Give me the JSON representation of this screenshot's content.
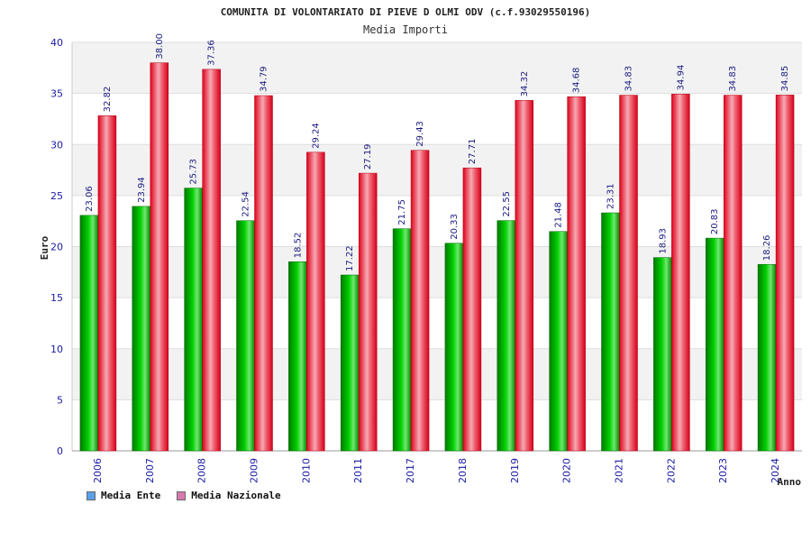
{
  "chart_data": {
    "type": "bar",
    "title": "COMUNITA DI VOLONTARIATO DI PIEVE D OLMI ODV (c.f.93029550196)",
    "subtitle": "Media Importi",
    "xlabel": "Anno",
    "ylabel": "Euro",
    "ylim": [
      0,
      40
    ],
    "yticks": [
      0,
      5,
      10,
      15,
      20,
      25,
      30,
      35,
      40
    ],
    "grid": true,
    "legend_position": "bottom-left",
    "categories": [
      "2006",
      "2007",
      "2008",
      "2009",
      "2010",
      "2011",
      "2017",
      "2018",
      "2019",
      "2020",
      "2021",
      "2022",
      "2023",
      "2024"
    ],
    "series": [
      {
        "name": "Media Ente",
        "color": "#00b000",
        "legend_color": "#5aa0e8",
        "values": [
          23.06,
          23.94,
          25.73,
          22.54,
          18.52,
          17.22,
          21.75,
          20.33,
          22.55,
          21.48,
          23.31,
          18.93,
          20.83,
          18.26
        ]
      },
      {
        "name": "Media Nazionale",
        "color": "#e8102a",
        "legend_color": "#d87ab0",
        "values": [
          32.82,
          38.0,
          37.36,
          34.79,
          29.24,
          27.19,
          29.43,
          27.71,
          34.32,
          34.68,
          34.83,
          34.94,
          34.83,
          34.85
        ],
        "labels": [
          "32.82",
          "38.00",
          "37.36",
          "34.79",
          "29.24",
          "27.19",
          "29.43",
          "27.71",
          "34.32",
          "34.68",
          "34.83",
          "34.94",
          "34.83",
          "34.85"
        ]
      }
    ]
  }
}
